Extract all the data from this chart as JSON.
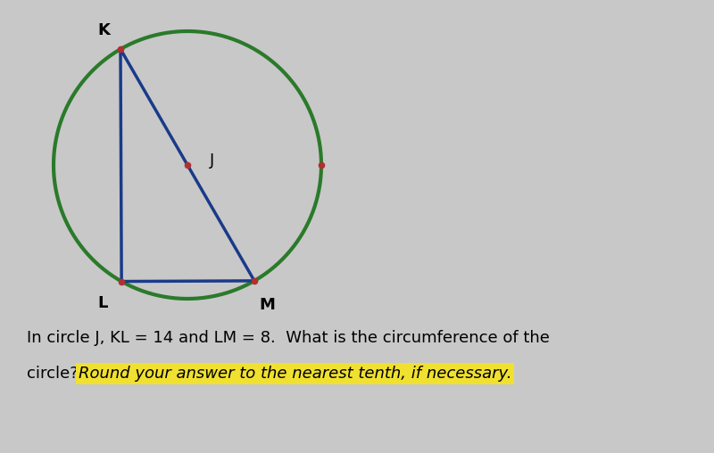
{
  "background_color": "#c8c8c8",
  "circle_color": "#2a7a2a",
  "triangle_color": "#1a3a8a",
  "dot_color": "#b03030",
  "circle_linewidth": 3.0,
  "triangle_linewidth": 2.5,
  "KL": 14,
  "LM": 8,
  "label_K": "K",
  "label_L": "L",
  "label_M": "M",
  "label_J": "J",
  "text_line1": "In circle J, KL = 14 and LM = 8.  What is the circumference of the",
  "text_line2": "circle? ",
  "highlight_text": "Round your answer to the nearest tenth, if necessary.",
  "highlight_color": "#f0e030",
  "text_fontsize": 13.0,
  "label_fontsize": 13
}
